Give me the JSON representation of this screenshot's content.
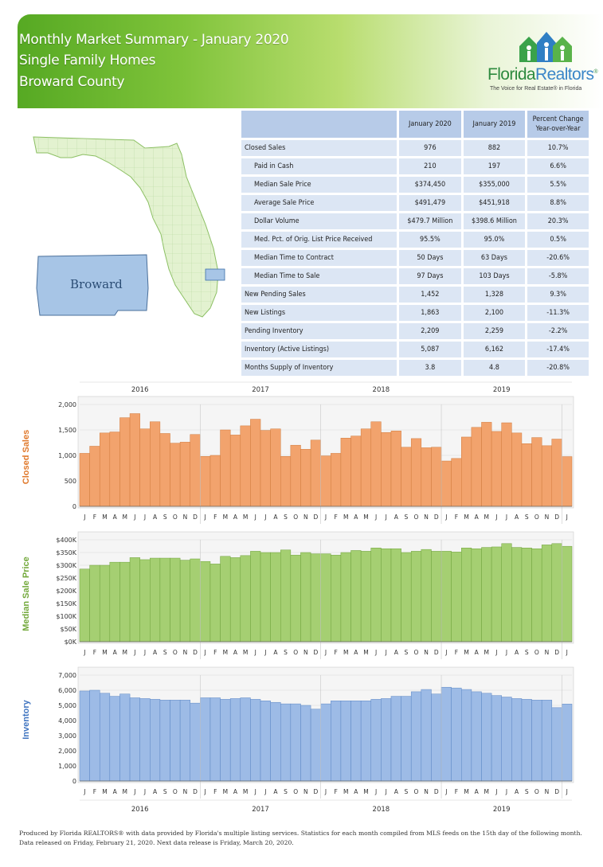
{
  "header": {
    "title_line1": "Monthly Market Summary - January 2020",
    "title_line2": "Single Family Homes",
    "title_line3": "Broward County"
  },
  "logo": {
    "name_part1": "Florida",
    "name_part2": "Realtors",
    "registered": "®",
    "tagline": "The Voice for Real Estate® in Florida",
    "colors": {
      "green": "#2d8a3e",
      "blue": "#3a86c8"
    }
  },
  "map": {
    "county_label": "Broward",
    "county_color": "#a7c5e6",
    "state_color": "#e3f2d0"
  },
  "table": {
    "headers": [
      "",
      "January 2020",
      "January 2019",
      "Percent Change Year-over-Year"
    ],
    "rows": [
      {
        "label": "Closed Sales",
        "indent": false,
        "jan2020": "976",
        "jan2019": "882",
        "change": "10.7%"
      },
      {
        "label": "Paid in Cash",
        "indent": true,
        "jan2020": "210",
        "jan2019": "197",
        "change": "6.6%"
      },
      {
        "label": "Median Sale Price",
        "indent": true,
        "jan2020": "$374,450",
        "jan2019": "$355,000",
        "change": "5.5%"
      },
      {
        "label": "Average Sale Price",
        "indent": true,
        "jan2020": "$491,479",
        "jan2019": "$451,918",
        "change": "8.8%"
      },
      {
        "label": "Dollar Volume",
        "indent": true,
        "jan2020": "$479.7 Million",
        "jan2019": "$398.6 Million",
        "change": "20.3%"
      },
      {
        "label": "Med. Pct. of Orig. List Price Received",
        "indent": true,
        "jan2020": "95.5%",
        "jan2019": "95.0%",
        "change": "0.5%"
      },
      {
        "label": "Median Time to Contract",
        "indent": true,
        "jan2020": "50 Days",
        "jan2019": "63 Days",
        "change": "-20.6%"
      },
      {
        "label": "Median Time to Sale",
        "indent": true,
        "jan2020": "97 Days",
        "jan2019": "103 Days",
        "change": "-5.8%"
      },
      {
        "label": "New Pending Sales",
        "indent": false,
        "jan2020": "1,452",
        "jan2019": "1,328",
        "change": "9.3%"
      },
      {
        "label": "New Listings",
        "indent": false,
        "jan2020": "1,863",
        "jan2019": "2,100",
        "change": "-11.3%"
      },
      {
        "label": "Pending Inventory",
        "indent": false,
        "jan2020": "2,209",
        "jan2019": "2,259",
        "change": "-2.2%"
      },
      {
        "label": "Inventory (Active Listings)",
        "indent": false,
        "jan2020": "5,087",
        "jan2019": "6,162",
        "change": "-17.4%"
      },
      {
        "label": "Months Supply of Inventory",
        "indent": false,
        "jan2020": "3.8",
        "jan2019": "4.8",
        "change": "-20.8%"
      }
    ]
  },
  "chart_data": [
    {
      "type": "bar",
      "ylabel": "Closed Sales",
      "ylim": [
        0,
        2000
      ],
      "yticks": [
        "0",
        "500",
        "1,000",
        "1,500",
        "2,000"
      ],
      "year_labels": [
        "2016",
        "2017",
        "2018",
        "2019"
      ],
      "categories": [
        "J",
        "F",
        "M",
        "A",
        "M",
        "J",
        "J",
        "A",
        "S",
        "O",
        "N",
        "D",
        "J",
        "F",
        "M",
        "A",
        "M",
        "J",
        "J",
        "A",
        "S",
        "O",
        "N",
        "D",
        "J",
        "F",
        "M",
        "A",
        "M",
        "J",
        "J",
        "A",
        "S",
        "O",
        "N",
        "D",
        "J",
        "F",
        "M",
        "A",
        "M",
        "J",
        "J",
        "A",
        "S",
        "O",
        "N",
        "D",
        "J"
      ],
      "values": [
        1040,
        1180,
        1440,
        1460,
        1740,
        1820,
        1520,
        1660,
        1430,
        1240,
        1260,
        1410,
        980,
        1000,
        1500,
        1400,
        1580,
        1710,
        1490,
        1520,
        980,
        1200,
        1120,
        1300,
        990,
        1040,
        1340,
        1380,
        1520,
        1660,
        1450,
        1480,
        1160,
        1330,
        1150,
        1160,
        890,
        940,
        1360,
        1550,
        1650,
        1470,
        1640,
        1440,
        1230,
        1350,
        1190,
        1320,
        976
      ],
      "color": "#f2a36d",
      "edge": "#d07a3c",
      "ylabel_color": "#e0782a"
    },
    {
      "type": "bar",
      "ylabel": "Median Sale Price",
      "ylim": [
        0,
        400000
      ],
      "yticks": [
        "$0K",
        "$50K",
        "$100K",
        "$150K",
        "$200K",
        "$250K",
        "$300K",
        "$350K",
        "$400K"
      ],
      "categories": [
        "J",
        "F",
        "M",
        "A",
        "M",
        "J",
        "J",
        "A",
        "S",
        "O",
        "N",
        "D",
        "J",
        "F",
        "M",
        "A",
        "M",
        "J",
        "J",
        "A",
        "S",
        "O",
        "N",
        "D",
        "J",
        "F",
        "M",
        "A",
        "M",
        "J",
        "J",
        "A",
        "S",
        "O",
        "N",
        "D",
        "J",
        "F",
        "M",
        "A",
        "M",
        "J",
        "J",
        "A",
        "S",
        "O",
        "N",
        "D",
        "J"
      ],
      "values": [
        285000,
        300000,
        300000,
        312000,
        312000,
        330000,
        322000,
        328000,
        328000,
        328000,
        320000,
        325000,
        315000,
        305000,
        335000,
        330000,
        338000,
        355000,
        350000,
        350000,
        360000,
        340000,
        350000,
        345000,
        345000,
        340000,
        350000,
        358000,
        355000,
        368000,
        365000,
        365000,
        350000,
        355000,
        362000,
        355000,
        355000,
        352000,
        368000,
        365000,
        370000,
        372000,
        385000,
        370000,
        368000,
        365000,
        380000,
        385000,
        374450
      ],
      "color": "#a5cf72",
      "edge": "#6ea23c",
      "ylabel_color": "#72a83a"
    },
    {
      "type": "bar",
      "ylabel": "Inventory",
      "ylim": [
        0,
        7000
      ],
      "yticks": [
        "0",
        "1,000",
        "2,000",
        "3,000",
        "4,000",
        "5,000",
        "6,000",
        "7,000"
      ],
      "year_labels": [
        "2016",
        "2017",
        "2018",
        "2019"
      ],
      "categories": [
        "J",
        "F",
        "M",
        "A",
        "M",
        "J",
        "J",
        "A",
        "S",
        "O",
        "N",
        "D",
        "J",
        "F",
        "M",
        "A",
        "M",
        "J",
        "J",
        "A",
        "S",
        "O",
        "N",
        "D",
        "J",
        "F",
        "M",
        "A",
        "M",
        "J",
        "J",
        "A",
        "S",
        "O",
        "N",
        "D",
        "J",
        "F",
        "M",
        "A",
        "M",
        "J",
        "J",
        "A",
        "S",
        "O",
        "N",
        "D",
        "J"
      ],
      "values": [
        5950,
        6000,
        5800,
        5600,
        5750,
        5500,
        5450,
        5400,
        5350,
        5350,
        5350,
        5150,
        5500,
        5500,
        5400,
        5450,
        5500,
        5400,
        5300,
        5200,
        5100,
        5100,
        5000,
        4750,
        5100,
        5300,
        5300,
        5300,
        5300,
        5400,
        5450,
        5600,
        5600,
        5900,
        6050,
        5750,
        6200,
        6150,
        6050,
        5900,
        5800,
        5650,
        5550,
        5450,
        5400,
        5350,
        5350,
        4850,
        5087
      ],
      "color": "#9dbbe6",
      "edge": "#5b86c4",
      "ylabel_color": "#3f74c0"
    }
  ],
  "footer": {
    "line1": "Produced by Florida REALTORS® with data provided by Florida's multiple listing services. Statistics for each month compiled from MLS feeds on the 15th day of the following month.",
    "line2": "Data released on Friday, February 21, 2020. Next data release is Friday, March 20, 2020."
  }
}
